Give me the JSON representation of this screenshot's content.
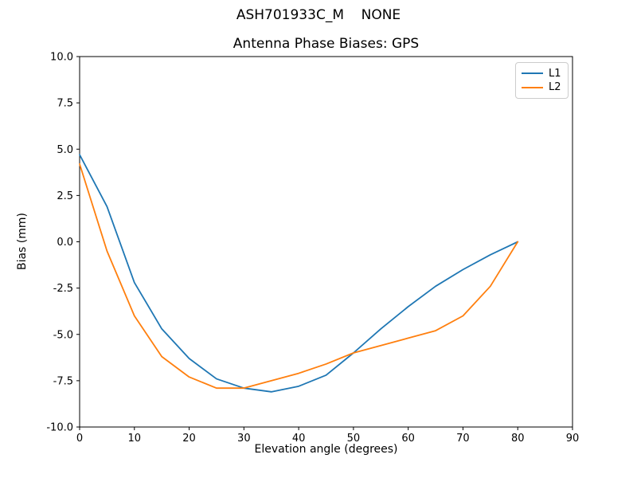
{
  "chart_data": {
    "type": "line",
    "suptitle": "ASH701933C_M    NONE",
    "title": "Antenna Phase Biases: GPS",
    "xlabel": "Elevation angle (degrees)",
    "ylabel": "Bias (mm)",
    "xlim": [
      0,
      90
    ],
    "ylim": [
      -10,
      10
    ],
    "grid": false,
    "xticks": [
      0,
      10,
      20,
      30,
      40,
      50,
      60,
      70,
      80,
      90
    ],
    "xtick_labels": [
      "0",
      "10",
      "20",
      "30",
      "40",
      "50",
      "60",
      "70",
      "80",
      "90"
    ],
    "yticks": [
      -10,
      -7.5,
      -5,
      -2.5,
      0,
      2.5,
      5,
      7.5,
      10
    ],
    "ytick_labels": [
      "-10.0",
      "-7.5",
      "-5.0",
      "-2.5",
      "0.0",
      "2.5",
      "5.0",
      "7.5",
      "10.0"
    ],
    "x": [
      0,
      5,
      10,
      15,
      20,
      25,
      30,
      35,
      40,
      45,
      50,
      55,
      60,
      65,
      70,
      75,
      80
    ],
    "series": [
      {
        "name": "L1",
        "color": "#1f77b4",
        "values": [
          4.7,
          1.9,
          -2.2,
          -4.7,
          -6.3,
          -7.4,
          -7.9,
          -8.1,
          -7.8,
          -7.2,
          -6.0,
          -4.7,
          -3.5,
          -2.4,
          -1.5,
          -0.7,
          0.0
        ]
      },
      {
        "name": "L2",
        "color": "#ff7f0e",
        "values": [
          4.2,
          -0.5,
          -4.0,
          -6.2,
          -7.3,
          -7.9,
          -7.9,
          -7.5,
          -7.1,
          -6.6,
          -6.0,
          -5.6,
          -5.2,
          -4.8,
          -4.0,
          -2.4,
          0.0
        ]
      }
    ],
    "legend": {
      "position": "upper right",
      "entries": [
        "L1",
        "L2"
      ]
    }
  }
}
